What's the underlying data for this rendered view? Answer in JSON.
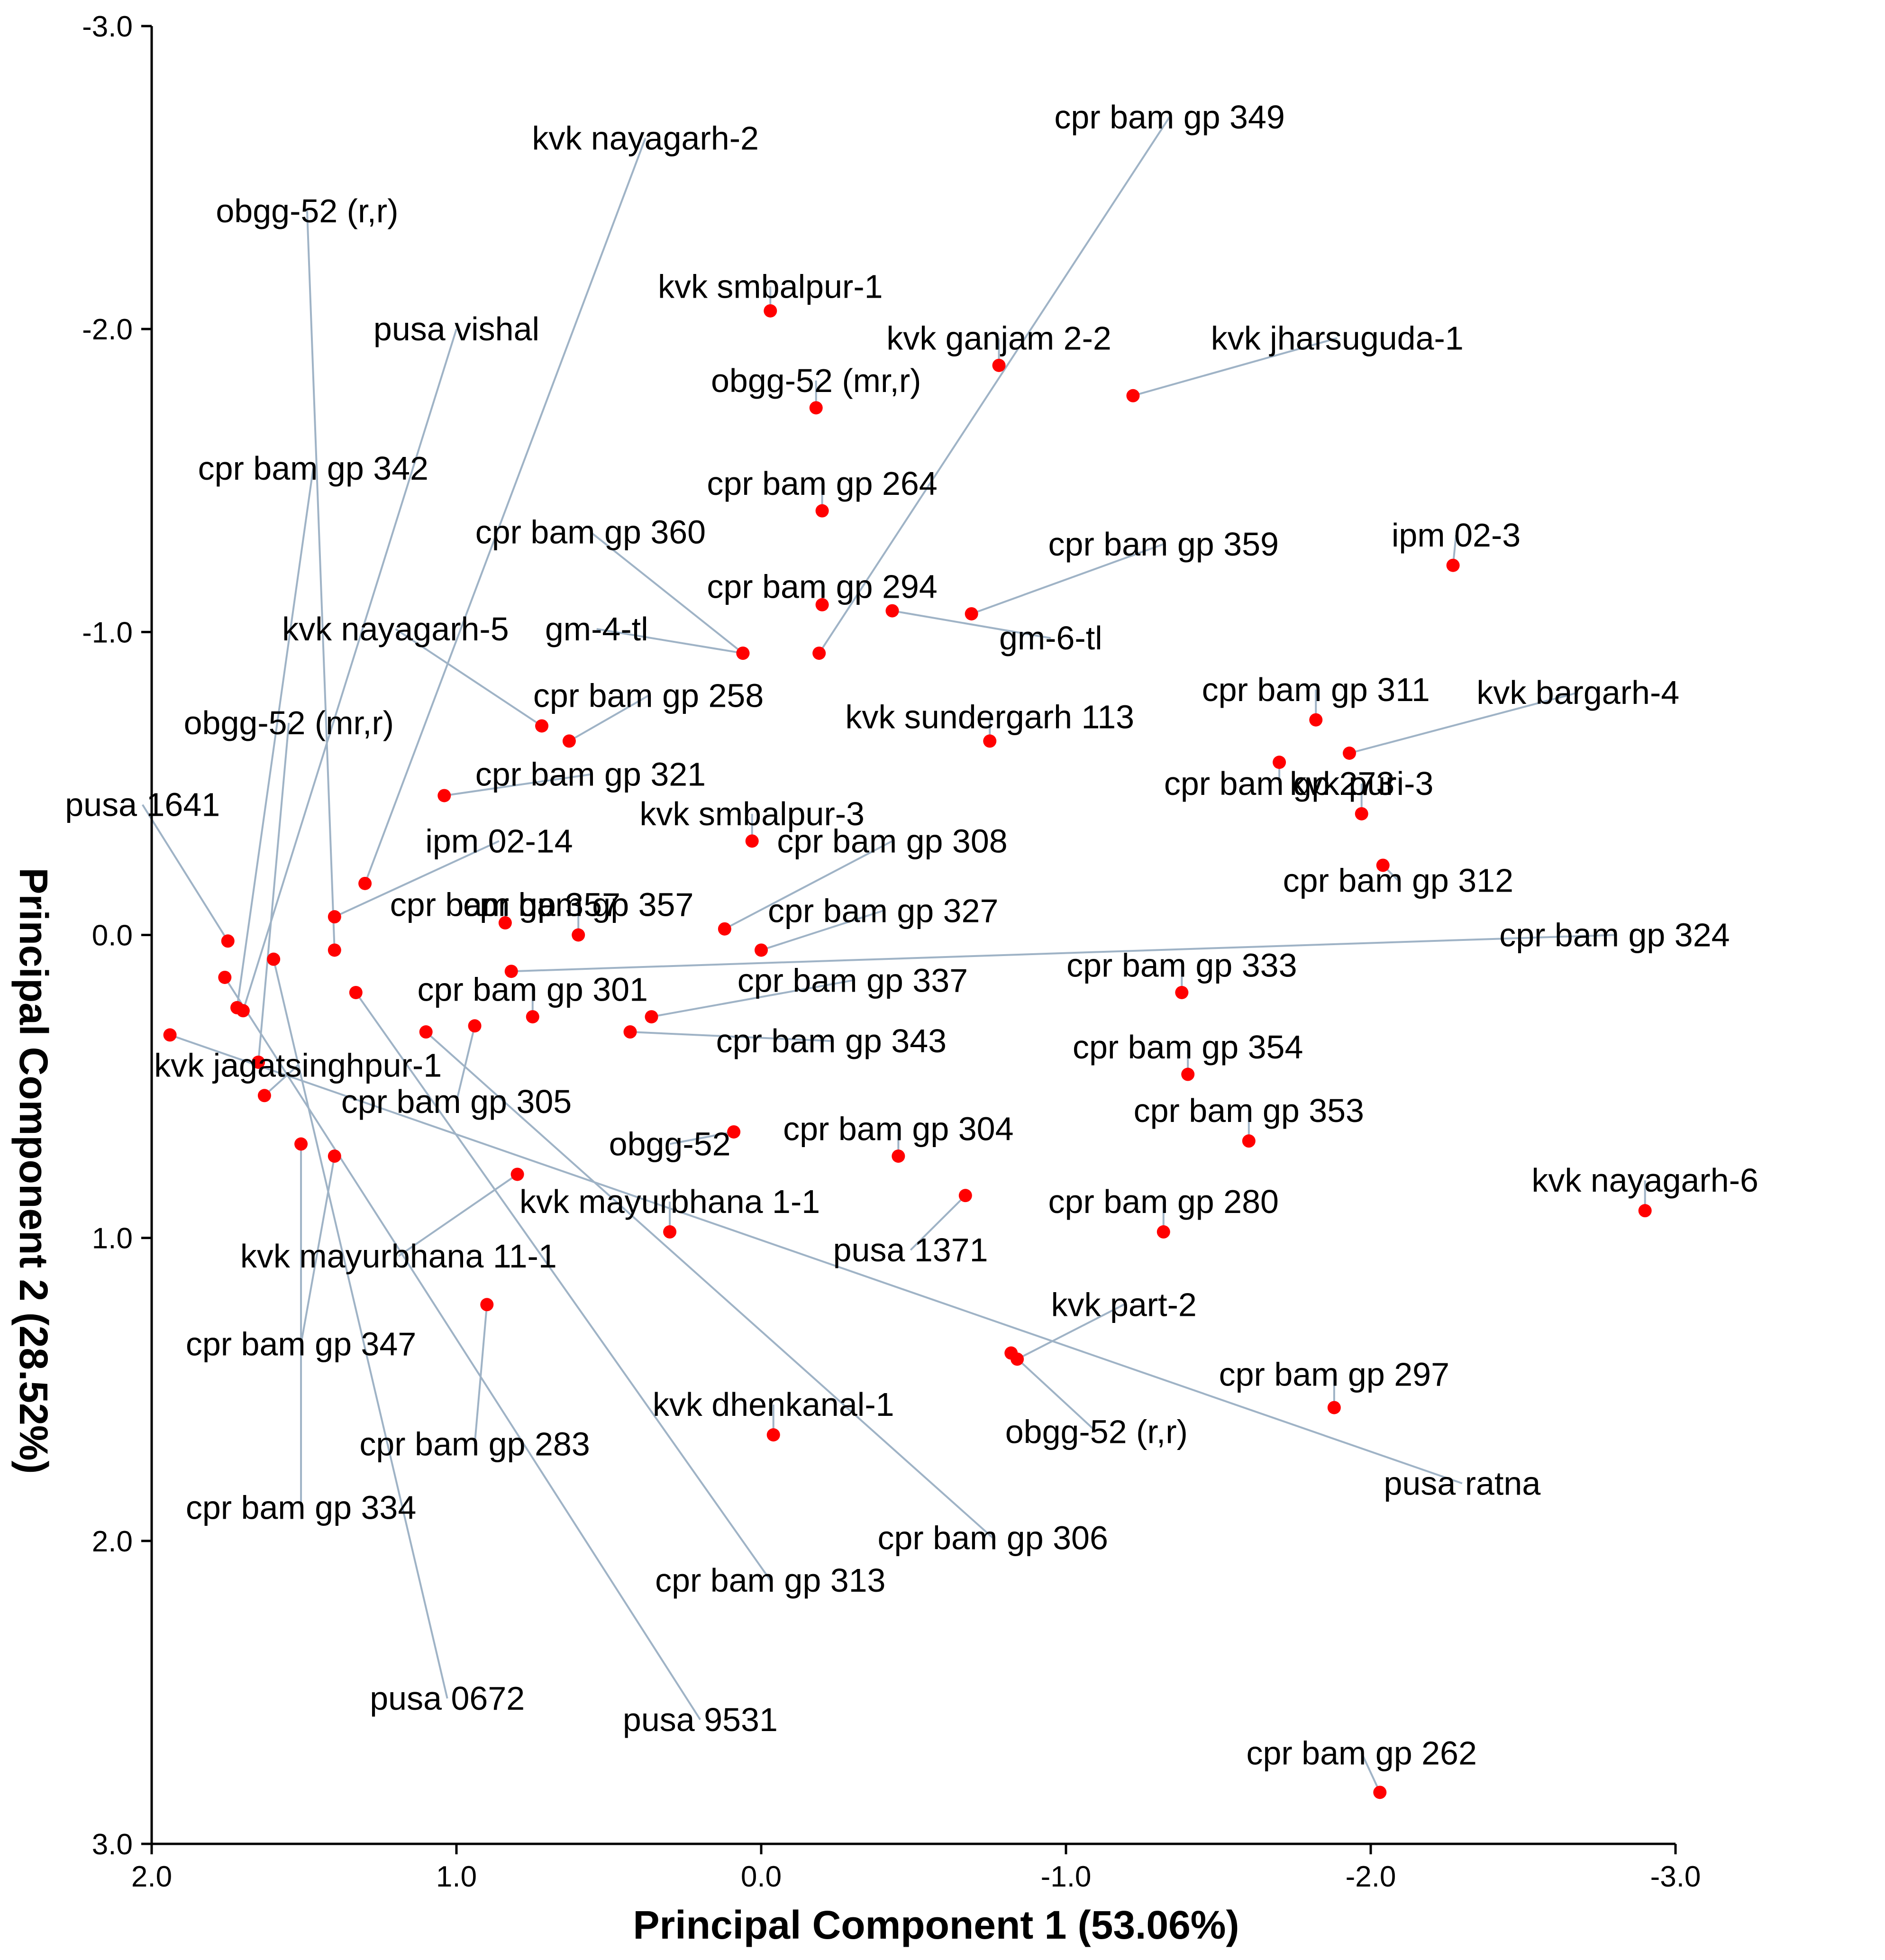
{
  "chart_data": {
    "type": "scatter",
    "xlabel": "Principal Component 1 (53.06%)",
    "ylabel": "Principal Component 2 (28.52%)",
    "xlim": [
      2.0,
      -3.0
    ],
    "ylim": [
      -3.0,
      3.0
    ],
    "x_ticks": [
      "2.0",
      "1.0",
      "0.0",
      "-1.0",
      "-2.0",
      "-3.0"
    ],
    "y_ticks": [
      "-3.0",
      "-2.0",
      "-1.0",
      "0.0",
      "1.0",
      "2.0",
      "3.0"
    ],
    "point_color": "#ff0000",
    "leader_color": "#9fb3c6",
    "points": [
      {
        "label": "cpr bam gp 349",
        "x": -0.19,
        "y": -0.93,
        "lx": -1.34,
        "ly": -2.7
      },
      {
        "label": "kvk nayagarh-2",
        "x": 1.3,
        "y": -0.17,
        "lx": 0.38,
        "ly": -2.63
      },
      {
        "label": "obgg-52 (r,r)",
        "x": 1.4,
        "y": 0.05,
        "lx": 1.49,
        "ly": -2.39
      },
      {
        "label": "kvk smbalpur-1",
        "x": -0.03,
        "y": -2.06,
        "lx": -0.03,
        "ly": -2.14
      },
      {
        "label": "pusa vishal",
        "x": 1.7,
        "y": 0.25,
        "lx": 1.0,
        "ly": -2.0
      },
      {
        "label": "kvk ganjam 2-2",
        "x": -0.78,
        "y": -1.88,
        "lx": -0.78,
        "ly": -1.97
      },
      {
        "label": "kvk jharsuguda-1",
        "x": -1.22,
        "y": -1.78,
        "lx": -1.89,
        "ly": -1.97
      },
      {
        "label": "obgg-52 (mr,r)",
        "x": -0.18,
        "y": -1.74,
        "lx": -0.18,
        "ly": -1.83
      },
      {
        "label": "cpr bam gp 342",
        "x": 1.72,
        "y": 0.24,
        "lx": 1.47,
        "ly": -1.54
      },
      {
        "label": "cpr bam gp 264",
        "x": -0.2,
        "y": -1.4,
        "lx": -0.2,
        "ly": -1.49
      },
      {
        "label": "cpr bam gp 360",
        "x": 0.06,
        "y": -0.93,
        "lx": 0.56,
        "ly": -1.33
      },
      {
        "label": "cpr bam gp 359",
        "x": -0.69,
        "y": -1.06,
        "lx": -1.32,
        "ly": -1.29
      },
      {
        "label": "ipm 02-3",
        "x": -2.27,
        "y": -1.22,
        "lx": -2.28,
        "ly": -1.32
      },
      {
        "label": "cpr bam gp 294",
        "x": -0.2,
        "y": -1.09,
        "lx": -0.2,
        "ly": -1.15
      },
      {
        "label": "gm-6-tl",
        "x": -0.43,
        "y": -1.07,
        "lx": -0.95,
        "ly": -0.98
      },
      {
        "label": "gm-4-tl",
        "x": 0.06,
        "y": -0.93,
        "lx": 0.54,
        "ly": -1.01
      },
      {
        "label": "kvk nayagarh-5",
        "x": 0.72,
        "y": -0.69,
        "lx": 1.2,
        "ly": -1.01
      },
      {
        "label": "cpr bam gp 258",
        "x": 0.63,
        "y": -0.64,
        "lx": 0.37,
        "ly": -0.79
      },
      {
        "label": "obgg-52 (mr,r)",
        "x": 1.65,
        "y": 0.42,
        "lx": 1.55,
        "ly": -0.7
      },
      {
        "label": "kvk sundergarh 113",
        "x": -0.75,
        "y": -0.64,
        "lx": -0.75,
        "ly": -0.72
      },
      {
        "label": "cpr bam gp 311",
        "x": -1.82,
        "y": -0.71,
        "lx": -1.82,
        "ly": -0.81
      },
      {
        "label": "kvk bargarh-4",
        "x": -1.93,
        "y": -0.6,
        "lx": -2.68,
        "ly": -0.8
      },
      {
        "label": "cpr bam gp 273",
        "x": -1.7,
        "y": -0.57,
        "lx": -1.7,
        "ly": -0.5
      },
      {
        "label": "kvk puri-3",
        "x": -1.97,
        "y": -0.4,
        "lx": -1.97,
        "ly": -0.5
      },
      {
        "label": "cpr bam gp 321",
        "x": 1.04,
        "y": -0.46,
        "lx": 0.56,
        "ly": -0.53
      },
      {
        "label": "pusa 1641",
        "x": 1.75,
        "y": 0.02,
        "lx": 2.03,
        "ly": -0.43
      },
      {
        "label": "kvk smbalpur-3",
        "x": 0.03,
        "y": -0.31,
        "lx": 0.03,
        "ly": -0.4
      },
      {
        "label": "cpr bam gp 308",
        "x": 0.12,
        "y": -0.02,
        "lx": -0.43,
        "ly": -0.31
      },
      {
        "label": "ipm 02-14",
        "x": 1.4,
        "y": -0.06,
        "lx": 0.86,
        "ly": -0.31
      },
      {
        "label": "cpr bam gp 312",
        "x": -2.04,
        "y": -0.23,
        "lx": -2.09,
        "ly": -0.18
      },
      {
        "label": "cpr bam gp 357",
        "x": 0.84,
        "y": -0.04,
        "lx": 0.84,
        "ly": -0.1
      },
      {
        "label": "cpr bam gp 357",
        "x": 0.6,
        "y": 0.0,
        "lx": 0.6,
        "ly": -0.1
      },
      {
        "label": "cpr bam gp 327",
        "x": 0.0,
        "y": 0.05,
        "lx": -0.4,
        "ly": -0.08
      },
      {
        "label": "cpr bam gp 324",
        "x": 0.82,
        "y": 0.12,
        "lx": -2.8,
        "ly": 0.0
      },
      {
        "label": "cpr bam gp 333",
        "x": -1.38,
        "y": 0.19,
        "lx": -1.38,
        "ly": 0.1
      },
      {
        "label": "cpr bam gp 337",
        "x": 0.36,
        "y": 0.27,
        "lx": -0.3,
        "ly": 0.15
      },
      {
        "label": "cpr bam gp 301",
        "x": 0.75,
        "y": 0.27,
        "lx": 0.75,
        "ly": 0.18
      },
      {
        "label": "cpr bam gp 343",
        "x": 0.43,
        "y": 0.32,
        "lx": -0.23,
        "ly": 0.35
      },
      {
        "label": "cpr bam gp 354",
        "x": -1.4,
        "y": 0.46,
        "lx": -1.4,
        "ly": 0.37
      },
      {
        "label": "kvk jagatsinghpur-1",
        "x": 1.63,
        "y": 0.53,
        "lx": 1.52,
        "ly": 0.43
      },
      {
        "label": "cpr bam gp 305",
        "x": 0.94,
        "y": 0.3,
        "lx": 1.0,
        "ly": 0.55
      },
      {
        "label": "cpr bam gp 353",
        "x": -1.6,
        "y": 0.68,
        "lx": -1.6,
        "ly": 0.58
      },
      {
        "label": "obgg-52",
        "x": 0.09,
        "y": 0.65,
        "lx": 0.3,
        "ly": 0.69
      },
      {
        "label": "cpr bam gp 304",
        "x": -0.45,
        "y": 0.73,
        "lx": -0.45,
        "ly": 0.64
      },
      {
        "label": "kvk nayagarh-6",
        "x": -2.9,
        "y": 0.91,
        "lx": -2.9,
        "ly": 0.81
      },
      {
        "label": "kvk mayurbhana 1-1",
        "x": 0.3,
        "y": 0.98,
        "lx": 0.3,
        "ly": 0.88
      },
      {
        "label": "cpr bam gp 280",
        "x": -1.32,
        "y": 0.98,
        "lx": -1.32,
        "ly": 0.88
      },
      {
        "label": "pusa 1371",
        "x": -0.67,
        "y": 0.86,
        "lx": -0.49,
        "ly": 1.04
      },
      {
        "label": "kvk mayurbhana 11-1",
        "x": 0.8,
        "y": 0.79,
        "lx": 1.19,
        "ly": 1.06
      },
      {
        "label": "kvk part-2",
        "x": -0.84,
        "y": 1.4,
        "lx": -1.19,
        "ly": 1.22
      },
      {
        "label": "cpr bam gp 347",
        "x": 1.4,
        "y": 0.73,
        "lx": 1.51,
        "ly": 1.35
      },
      {
        "label": "cpr bam gp 297",
        "x": -1.88,
        "y": 1.56,
        "lx": -1.88,
        "ly": 1.45
      },
      {
        "label": "obgg-52 (r,r)",
        "x": -0.82,
        "y": 1.38,
        "lx": -1.1,
        "ly": 1.64
      },
      {
        "label": "kvk dhenkanal-1",
        "x": -0.04,
        "y": 1.65,
        "lx": -0.04,
        "ly": 1.55
      },
      {
        "label": "cpr bam gp 283",
        "x": 0.9,
        "y": 1.22,
        "lx": 0.94,
        "ly": 1.68
      },
      {
        "label": "pusa ratna",
        "x": 1.94,
        "y": 0.33,
        "lx": -2.3,
        "ly": 1.81
      },
      {
        "label": "cpr bam gp 334",
        "x": 1.51,
        "y": 0.69,
        "lx": 1.51,
        "ly": 1.89
      },
      {
        "label": "cpr bam gp 306",
        "x": 1.1,
        "y": 0.32,
        "lx": -0.76,
        "ly": 1.99
      },
      {
        "label": "cpr bam gp 313",
        "x": 1.33,
        "y": 0.19,
        "lx": -0.03,
        "ly": 2.13
      },
      {
        "label": "pusa 0672",
        "x": 1.6,
        "y": 0.08,
        "lx": 1.03,
        "ly": 2.52
      },
      {
        "label": "pusa 9531",
        "x": 1.76,
        "y": 0.14,
        "lx": 0.2,
        "ly": 2.59
      },
      {
        "label": "cpr bam gp 262",
        "x": -2.03,
        "y": 2.83,
        "lx": -1.97,
        "ly": 2.7
      }
    ]
  }
}
